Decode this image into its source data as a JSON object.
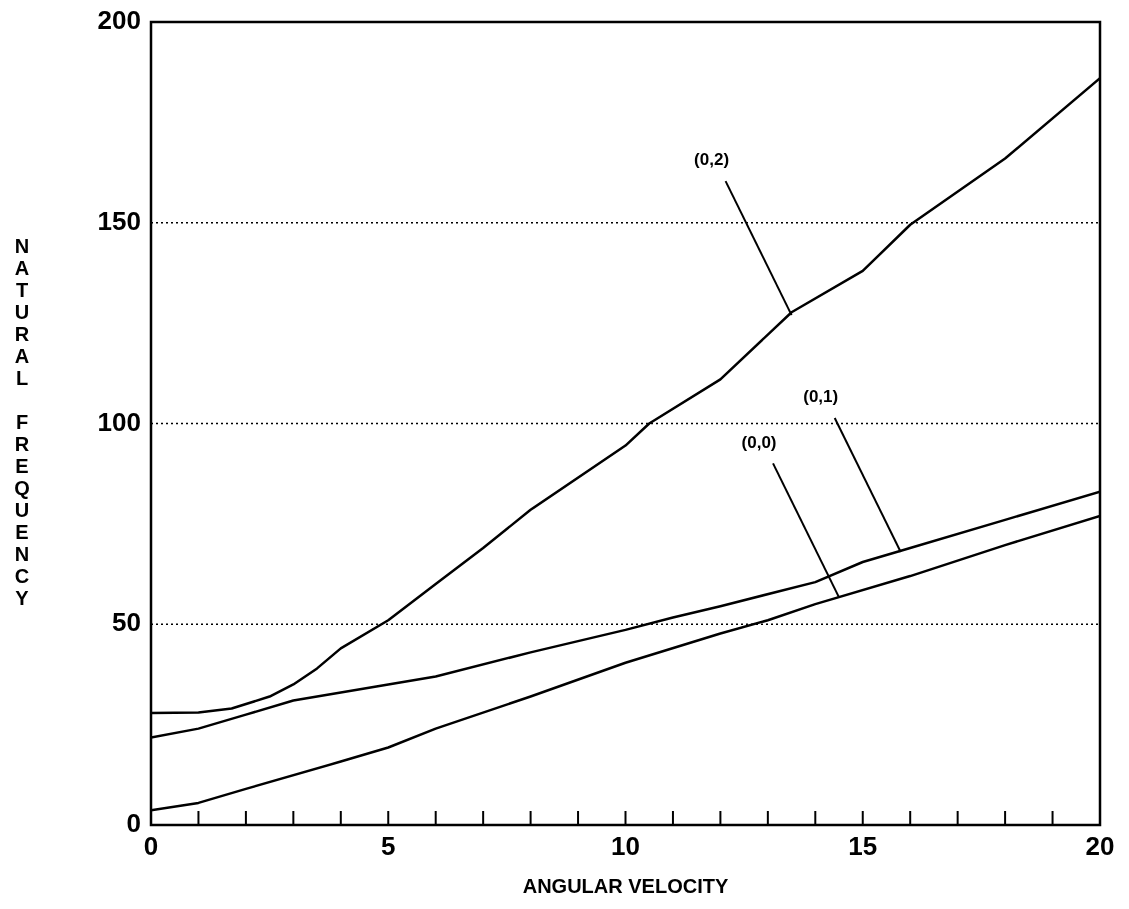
{
  "chart_data": {
    "type": "line",
    "xlabel": "ANGULAR VELOCITY",
    "ylabel": "NATURAL FREQUENCY",
    "xlim": [
      0,
      20
    ],
    "ylim": [
      0,
      200
    ],
    "xticks": [
      0,
      {
        "value": 1,
        "label": null
      },
      {
        "value": 2,
        "label": null
      },
      {
        "value": 3,
        "label": null
      },
      {
        "value": 4,
        "label": null
      },
      5,
      {
        "value": 6,
        "label": null
      },
      {
        "value": 7,
        "label": null
      },
      {
        "value": 8,
        "label": null
      },
      {
        "value": 9,
        "label": null
      },
      10,
      {
        "value": 11,
        "label": null
      },
      {
        "value": 12,
        "label": null
      },
      {
        "value": 13,
        "label": null
      },
      {
        "value": 14,
        "label": null
      },
      15,
      {
        "value": 16,
        "label": null
      },
      {
        "value": 17,
        "label": null
      },
      {
        "value": 18,
        "label": null
      },
      {
        "value": 19,
        "label": null
      },
      20
    ],
    "yticks": [
      0,
      50,
      100,
      150,
      200
    ],
    "grid": "y",
    "legend": false,
    "marker": "none",
    "line_style": "solid",
    "series": [
      {
        "color": "#000000",
        "x": [
          0,
          1,
          1.7,
          2.5,
          3,
          3.5,
          4,
          5,
          6,
          7,
          8,
          10,
          10.5,
          12,
          13.5,
          15,
          16,
          18,
          20
        ],
        "values": [
          27.9,
          28,
          29,
          32,
          35,
          39,
          44,
          51,
          60,
          69,
          78.5,
          94.5,
          100,
          111,
          127.7,
          138,
          149.5,
          166,
          186
        ]
      },
      {
        "color": "#000000",
        "x": [
          0,
          1,
          2,
          3,
          5,
          6,
          8,
          10,
          11,
          12,
          14,
          15,
          16,
          18,
          20
        ],
        "values": [
          21.8,
          24,
          27.5,
          31,
          35,
          37,
          43,
          48.6,
          51.7,
          54.5,
          60.5,
          65.5,
          69,
          76,
          83
        ]
      },
      {
        "color": "#000000",
        "x": [
          0,
          1,
          2,
          4,
          5,
          6,
          8,
          10,
          12,
          13,
          14,
          16,
          18,
          20
        ],
        "values": [
          3.7,
          5.5,
          9,
          15.8,
          19.3,
          24,
          32,
          40.4,
          47.7,
          51,
          55,
          62,
          69.7,
          77
        ]
      }
    ],
    "annotations": [
      {
        "text": "(0,2)",
        "x": 13.5,
        "y": 127
      },
      {
        "text": "(0,0)",
        "x": 14.5,
        "y": 56.7
      },
      {
        "text": "(0,1)",
        "x": 15.8,
        "y": 68
      }
    ]
  }
}
